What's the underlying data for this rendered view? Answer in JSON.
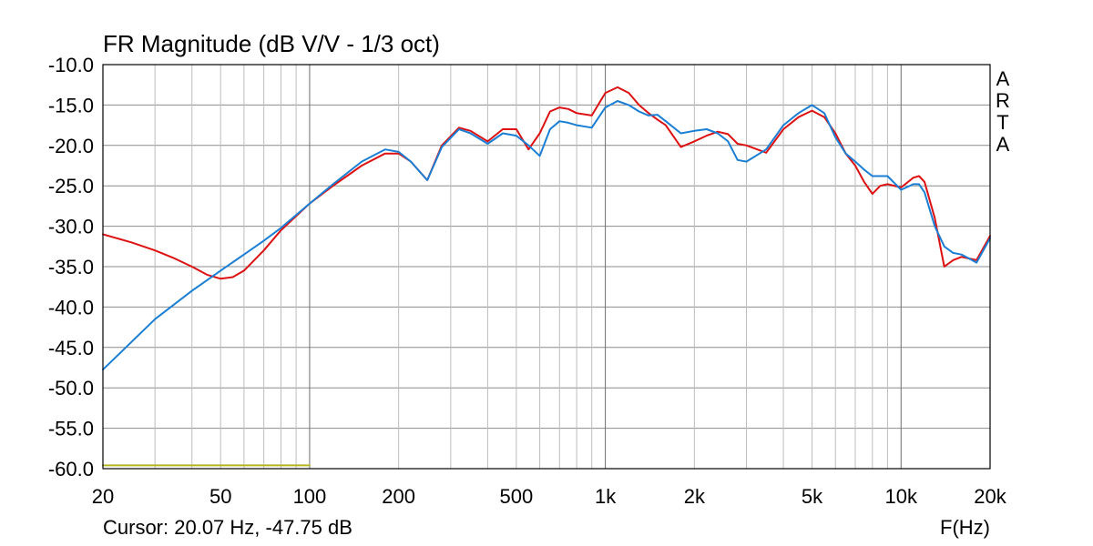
{
  "chart_data": {
    "type": "line",
    "title": "FR Magnitude (dB V/V - 1/3 oct)",
    "xlabel": "F(Hz)",
    "ylabel": "",
    "xscale": "log",
    "xlim": [
      20,
      20000
    ],
    "ylim": [
      -60,
      -10
    ],
    "grid": true,
    "y_ticks": [
      -10,
      -15,
      -20,
      -25,
      -30,
      -35,
      -40,
      -45,
      -50,
      -55,
      -60
    ],
    "y_tick_labels": [
      "-10.0",
      "-15.0",
      "-20.0",
      "-25.0",
      "-30.0",
      "-35.0",
      "-40.0",
      "-45.0",
      "-50.0",
      "-55.0",
      "-60.0"
    ],
    "x_ticks": [
      20,
      50,
      100,
      200,
      500,
      1000,
      2000,
      5000,
      10000,
      20000
    ],
    "x_tick_labels": [
      "20",
      "50",
      "100",
      "200",
      "500",
      "1k",
      "2k",
      "5k",
      "10k",
      "20k"
    ],
    "series": [
      {
        "color": "#dd1111",
        "x": [
          20,
          25,
          30,
          35,
          40,
          45,
          50,
          55,
          60,
          70,
          80,
          100,
          120,
          150,
          180,
          200,
          220,
          250,
          280,
          320,
          350,
          400,
          450,
          500,
          550,
          600,
          650,
          700,
          750,
          800,
          900,
          1000,
          1100,
          1200,
          1300,
          1400,
          1500,
          1600,
          1800,
          2000,
          2200,
          2400,
          2600,
          2800,
          3000,
          3500,
          4000,
          4500,
          5000,
          5500,
          6000,
          6500,
          7000,
          7500,
          8000,
          8500,
          9000,
          10000,
          11000,
          11500,
          12000,
          13000,
          14000,
          15000,
          16000,
          17000,
          18000,
          20000
        ],
        "y": [
          -31.0,
          -32.0,
          -33.0,
          -34.0,
          -35.0,
          -36.0,
          -36.5,
          -36.3,
          -35.5,
          -33.0,
          -30.5,
          -27.2,
          -25.0,
          -22.5,
          -21.0,
          -21.0,
          -22.0,
          -24.3,
          -20.0,
          -17.8,
          -18.2,
          -19.5,
          -18.0,
          -18.0,
          -20.5,
          -18.5,
          -15.8,
          -15.3,
          -15.5,
          -16.0,
          -16.3,
          -13.5,
          -12.8,
          -13.5,
          -15.0,
          -16.0,
          -16.8,
          -17.5,
          -20.2,
          -19.5,
          -18.8,
          -18.3,
          -18.6,
          -19.8,
          -20.0,
          -20.9,
          -18.0,
          -16.5,
          -15.7,
          -16.5,
          -18.5,
          -21.0,
          -22.5,
          -24.5,
          -26.0,
          -25.0,
          -24.8,
          -25.2,
          -24.0,
          -23.8,
          -24.5,
          -29.0,
          -35.0,
          -34.2,
          -33.8,
          -34.0,
          -34.2,
          -31.2
        ]
      },
      {
        "color": "#1a7fd4",
        "x": [
          20,
          30,
          40,
          50,
          60,
          70,
          80,
          100,
          120,
          150,
          180,
          200,
          220,
          250,
          280,
          320,
          350,
          400,
          450,
          500,
          550,
          600,
          650,
          700,
          750,
          800,
          900,
          1000,
          1100,
          1200,
          1300,
          1400,
          1500,
          1600,
          1800,
          2000,
          2200,
          2400,
          2600,
          2800,
          3000,
          3500,
          4000,
          4500,
          5000,
          5500,
          6000,
          6500,
          7000,
          7500,
          8000,
          9000,
          10000,
          11000,
          11500,
          12000,
          13000,
          14000,
          15000,
          16000,
          17000,
          18000,
          20000
        ],
        "y": [
          -47.75,
          -41.5,
          -38.0,
          -35.5,
          -33.5,
          -31.8,
          -30.2,
          -27.2,
          -24.8,
          -22.0,
          -20.5,
          -20.8,
          -22.0,
          -24.3,
          -20.2,
          -18.0,
          -18.5,
          -19.8,
          -18.5,
          -18.8,
          -20.0,
          -21.3,
          -18.0,
          -17.0,
          -17.2,
          -17.5,
          -17.8,
          -15.3,
          -14.5,
          -15.0,
          -15.8,
          -16.3,
          -16.2,
          -17.0,
          -18.5,
          -18.2,
          -18.0,
          -18.5,
          -19.5,
          -21.8,
          -22.0,
          -20.5,
          -17.5,
          -16.0,
          -15.0,
          -16.0,
          -19.0,
          -21.0,
          -22.0,
          -23.0,
          -23.8,
          -23.8,
          -25.5,
          -24.8,
          -24.8,
          -25.8,
          -30.0,
          -32.5,
          -33.3,
          -33.5,
          -34.0,
          -34.5,
          -31.5
        ]
      },
      {
        "color": "#b5b521",
        "x": [
          20,
          100
        ],
        "y": [
          -59.6,
          -59.6
        ]
      }
    ]
  },
  "brand": [
    "A",
    "R",
    "T",
    "A"
  ],
  "cursor_text": "Cursor: 20.07 Hz, -47.75 dB"
}
